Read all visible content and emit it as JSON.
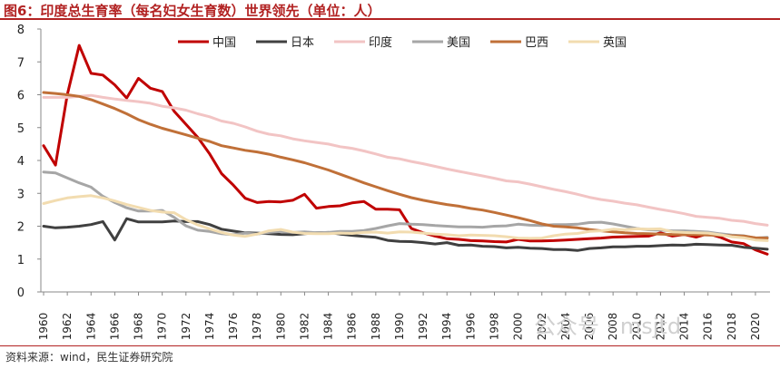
{
  "header": {
    "title": "图6：印度总生育率（每名妇女生育数）世界领先（单位：人）"
  },
  "footer": {
    "source": "资料来源：wind，民生证券研究院"
  },
  "watermark": {
    "text": "公众号 · msjtd"
  },
  "chart_data": {
    "type": "line",
    "title": "图6：印度总生育率（每名妇女生育数）世界领先（单位：人）",
    "xlabel": "",
    "ylabel": "",
    "ylim": [
      0,
      8
    ],
    "yticks": [
      0,
      1,
      2,
      3,
      4,
      5,
      6,
      7,
      8
    ],
    "xlim": [
      1960,
      2021
    ],
    "xticks": [
      1960,
      1962,
      1964,
      1966,
      1968,
      1970,
      1972,
      1974,
      1976,
      1978,
      1980,
      1982,
      1984,
      1986,
      1988,
      1990,
      1992,
      1994,
      1996,
      1998,
      2000,
      2002,
      2004,
      2006,
      2008,
      2010,
      2012,
      2014,
      2016,
      2018,
      2020
    ],
    "legend_position": "top-center",
    "series": [
      {
        "name": "中国",
        "color": "#c00000",
        "width": 3,
        "start": 1960,
        "values": [
          4.45,
          3.86,
          6.0,
          7.5,
          6.65,
          6.6,
          6.3,
          5.9,
          6.5,
          6.2,
          6.1,
          5.5,
          5.1,
          4.7,
          4.2,
          3.6,
          3.25,
          2.85,
          2.72,
          2.75,
          2.74,
          2.79,
          2.97,
          2.55,
          2.6,
          2.62,
          2.71,
          2.75,
          2.52,
          2.52,
          2.5,
          1.93,
          1.8,
          1.7,
          1.62,
          1.6,
          1.56,
          1.55,
          1.53,
          1.52,
          1.6,
          1.55,
          1.55,
          1.56,
          1.58,
          1.6,
          1.62,
          1.64,
          1.67,
          1.68,
          1.69,
          1.7,
          1.8,
          1.7,
          1.75,
          1.67,
          1.77,
          1.67,
          1.52,
          1.47,
          1.28,
          1.15
        ]
      },
      {
        "name": "日本",
        "color": "#404040",
        "width": 3,
        "start": 1960,
        "values": [
          2.0,
          1.95,
          1.97,
          2.0,
          2.05,
          2.14,
          1.58,
          2.23,
          2.13,
          2.13,
          2.13,
          2.16,
          2.14,
          2.14,
          2.05,
          1.91,
          1.85,
          1.8,
          1.79,
          1.77,
          1.75,
          1.74,
          1.77,
          1.8,
          1.81,
          1.76,
          1.72,
          1.69,
          1.66,
          1.57,
          1.54,
          1.53,
          1.5,
          1.46,
          1.5,
          1.42,
          1.43,
          1.39,
          1.38,
          1.34,
          1.36,
          1.33,
          1.32,
          1.29,
          1.29,
          1.26,
          1.32,
          1.34,
          1.37,
          1.37,
          1.39,
          1.39,
          1.41,
          1.43,
          1.42,
          1.45,
          1.44,
          1.43,
          1.42,
          1.36,
          1.33,
          1.3
        ]
      },
      {
        "name": "印度",
        "color": "#f2c4c4",
        "width": 3,
        "start": 1960,
        "values": [
          5.92,
          5.92,
          5.92,
          5.95,
          5.98,
          5.92,
          5.87,
          5.83,
          5.79,
          5.74,
          5.65,
          5.6,
          5.53,
          5.42,
          5.33,
          5.2,
          5.13,
          5.02,
          4.89,
          4.8,
          4.75,
          4.66,
          4.6,
          4.55,
          4.5,
          4.42,
          4.37,
          4.29,
          4.2,
          4.1,
          4.05,
          3.97,
          3.9,
          3.82,
          3.74,
          3.67,
          3.6,
          3.53,
          3.46,
          3.38,
          3.35,
          3.28,
          3.2,
          3.12,
          3.05,
          2.97,
          2.88,
          2.81,
          2.76,
          2.7,
          2.65,
          2.58,
          2.51,
          2.45,
          2.38,
          2.3,
          2.27,
          2.24,
          2.18,
          2.15,
          2.08,
          2.03
        ]
      },
      {
        "name": "美国",
        "color": "#a6a6a6",
        "width": 3,
        "start": 1960,
        "values": [
          3.65,
          3.62,
          3.47,
          3.32,
          3.19,
          2.91,
          2.72,
          2.56,
          2.46,
          2.46,
          2.48,
          2.27,
          2.01,
          1.88,
          1.84,
          1.77,
          1.74,
          1.79,
          1.76,
          1.81,
          1.84,
          1.81,
          1.83,
          1.8,
          1.81,
          1.84,
          1.84,
          1.87,
          1.93,
          2.01,
          2.08,
          2.06,
          2.05,
          2.02,
          2.0,
          1.98,
          1.98,
          1.97,
          2.0,
          2.01,
          2.06,
          2.03,
          2.02,
          2.05,
          2.05,
          2.06,
          2.11,
          2.12,
          2.07,
          2.0,
          1.93,
          1.89,
          1.88,
          1.86,
          1.86,
          1.84,
          1.82,
          1.77,
          1.73,
          1.71,
          1.64,
          1.66
        ]
      },
      {
        "name": "巴西",
        "color": "#c07038",
        "width": 3,
        "start": 1960,
        "values": [
          6.07,
          6.04,
          6.0,
          5.95,
          5.85,
          5.72,
          5.58,
          5.42,
          5.24,
          5.1,
          4.98,
          4.88,
          4.78,
          4.68,
          4.58,
          4.45,
          4.38,
          4.31,
          4.26,
          4.19,
          4.1,
          4.02,
          3.93,
          3.82,
          3.71,
          3.58,
          3.45,
          3.32,
          3.2,
          3.08,
          2.97,
          2.87,
          2.79,
          2.72,
          2.66,
          2.61,
          2.54,
          2.49,
          2.42,
          2.34,
          2.26,
          2.17,
          2.07,
          2.0,
          1.98,
          1.95,
          1.9,
          1.86,
          1.83,
          1.8,
          1.78,
          1.77,
          1.76,
          1.75,
          1.74,
          1.74,
          1.73,
          1.72,
          1.71,
          1.7,
          1.65,
          1.64
        ]
      },
      {
        "name": "英国",
        "color": "#f2dcb0",
        "width": 3,
        "start": 1960,
        "values": [
          2.69,
          2.78,
          2.86,
          2.9,
          2.93,
          2.86,
          2.77,
          2.66,
          2.57,
          2.48,
          2.43,
          2.41,
          2.2,
          2.04,
          1.92,
          1.81,
          1.73,
          1.69,
          1.76,
          1.86,
          1.9,
          1.82,
          1.78,
          1.77,
          1.77,
          1.79,
          1.78,
          1.81,
          1.82,
          1.79,
          1.83,
          1.82,
          1.79,
          1.76,
          1.74,
          1.71,
          1.73,
          1.72,
          1.71,
          1.68,
          1.64,
          1.63,
          1.64,
          1.71,
          1.76,
          1.78,
          1.84,
          1.86,
          1.91,
          1.89,
          1.92,
          1.91,
          1.92,
          1.83,
          1.81,
          1.8,
          1.79,
          1.74,
          1.68,
          1.65,
          1.58,
          1.56
        ]
      }
    ]
  }
}
